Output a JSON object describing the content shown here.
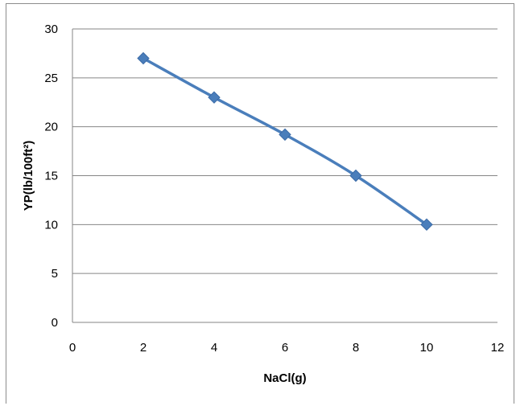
{
  "chart_data": {
    "type": "line",
    "title": "",
    "xlabel": "NaCl(g)",
    "ylabel": "YP(lb/100ft²)",
    "xlim": [
      0,
      12
    ],
    "ylim": [
      0,
      30
    ],
    "x_ticks": [
      0,
      2,
      4,
      6,
      8,
      10,
      12
    ],
    "y_ticks": [
      0,
      5,
      10,
      15,
      20,
      25,
      30
    ],
    "grid": true,
    "legend": "none",
    "series": [
      {
        "x": [
          2,
          4,
          6,
          8,
          10
        ],
        "y": [
          27,
          23,
          19.2,
          15,
          10
        ],
        "color": "#4a7ebb",
        "marker": "diamond",
        "smooth": true
      }
    ]
  }
}
